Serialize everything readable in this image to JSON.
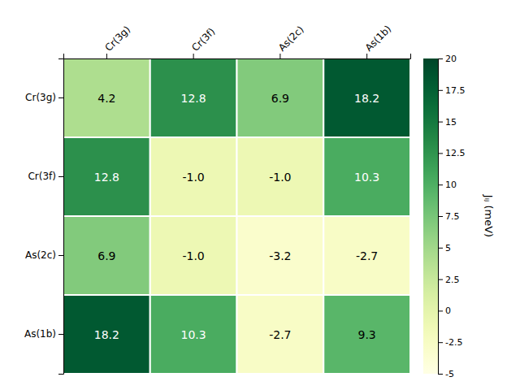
{
  "chart_data": {
    "type": "heatmap",
    "categories": [
      "Cr(3g)",
      "Cr(3f)",
      "As(2c)",
      "As(1b)"
    ],
    "values": [
      [
        4.2,
        12.8,
        6.9,
        18.2
      ],
      [
        12.8,
        -1.0,
        -1.0,
        10.3
      ],
      [
        6.9,
        -1.0,
        -3.2,
        -2.7
      ],
      [
        18.2,
        10.3,
        -2.7,
        9.3
      ]
    ],
    "value_labels": [
      [
        "4.2",
        "12.8",
        "6.9",
        "18.2"
      ],
      [
        "12.8",
        "-1.0",
        "-1.0",
        "10.3"
      ],
      [
        "6.9",
        "-1.0",
        "-3.2",
        "-2.7"
      ],
      [
        "18.2",
        "10.3",
        "-2.7",
        "9.3"
      ]
    ],
    "data_labels": true,
    "color": "YlGn",
    "colorbar_label": "Jᵢⱼ (meV)",
    "colorbar_range": [
      -5,
      20
    ],
    "colorbar_ticks": [
      -5,
      -2.5,
      0,
      2.5,
      5,
      7.5,
      10,
      12.5,
      15,
      17.5,
      20
    ]
  }
}
